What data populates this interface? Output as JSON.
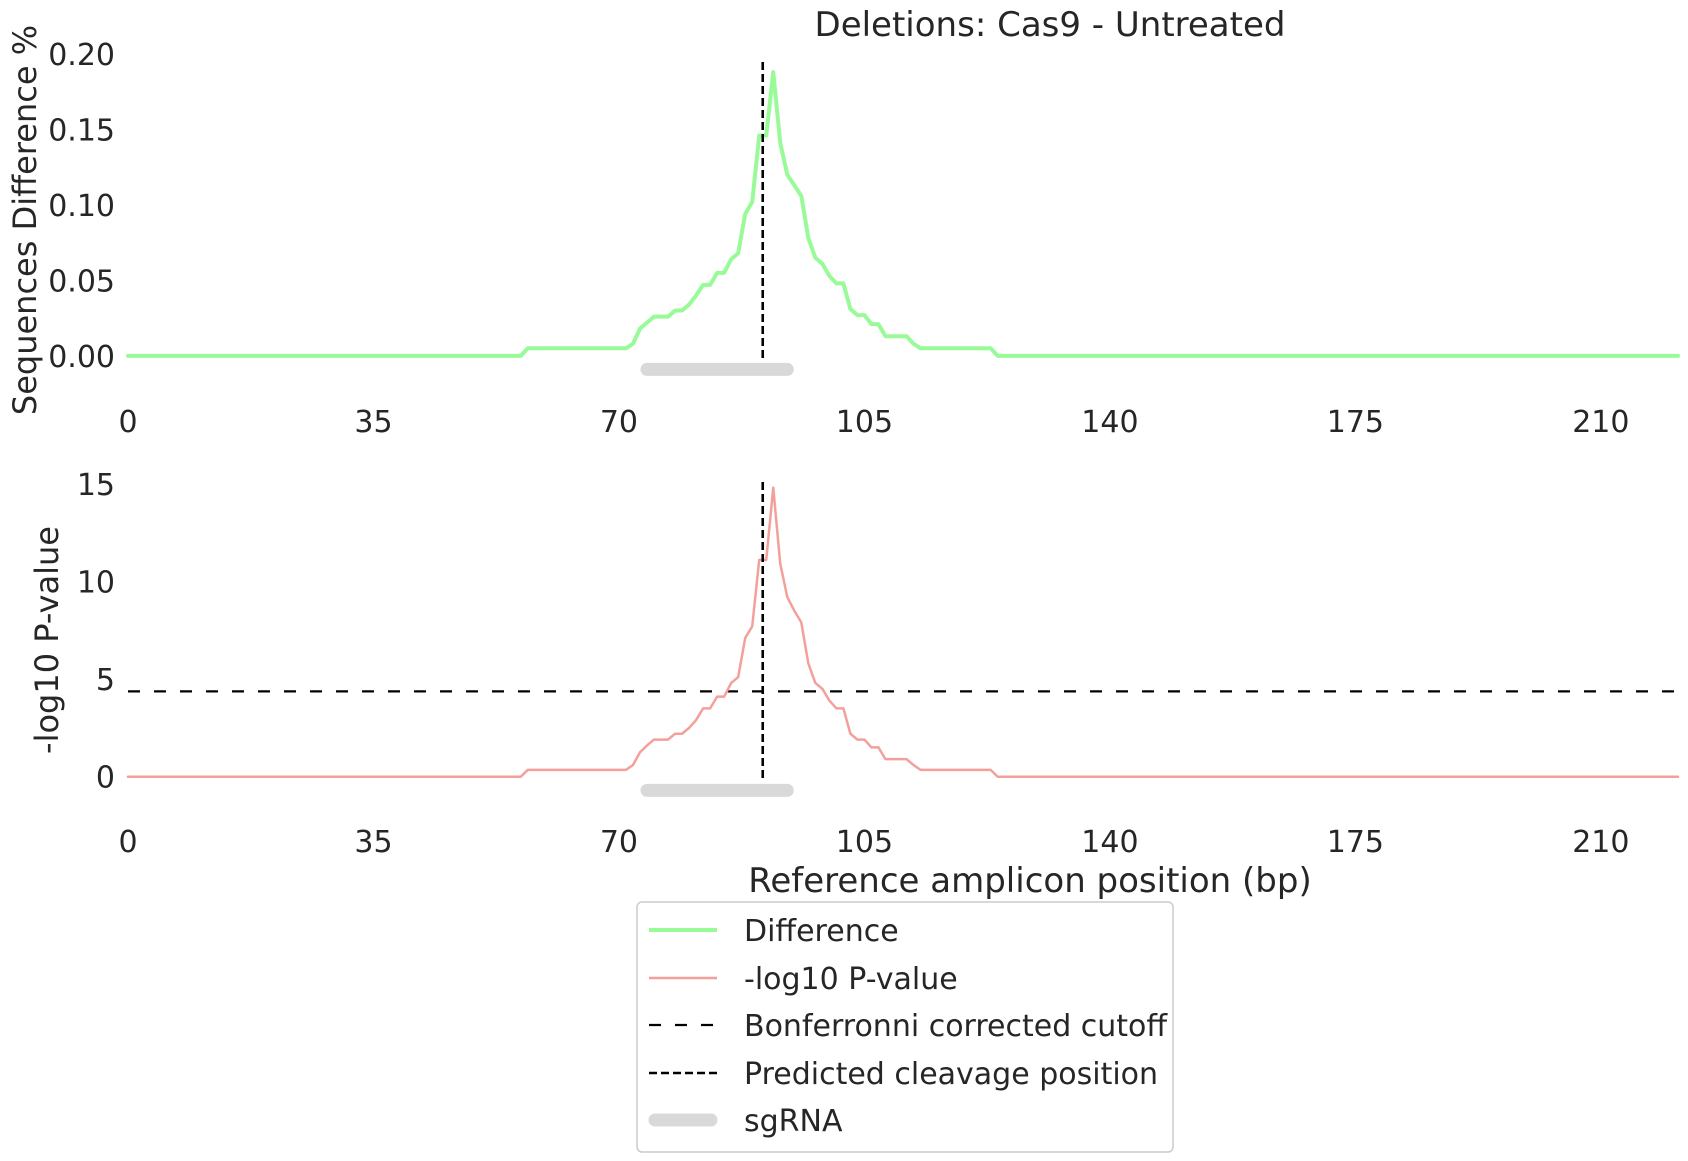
{
  "title": "Deletions: Cas9 - Untreated",
  "colors": {
    "difference": "#98fb98",
    "pvalue": "#f4a09a",
    "cutoff": "#000000",
    "cleavage": "#000000",
    "sgrna": "#d9d9d9",
    "text": "#262626"
  },
  "legend": {
    "placement": "bottom-center",
    "entries": [
      {
        "label": "Difference",
        "style": "green-solid"
      },
      {
        "label": "-log10 P-value",
        "style": "red-solid"
      },
      {
        "label": "Bonferronni corrected cutoff",
        "style": "black-loose-dash"
      },
      {
        "label": "Predicted cleavage position",
        "style": "black-dash"
      },
      {
        "label": "sgRNA",
        "style": "gray-thick"
      }
    ]
  },
  "chart_data": [
    {
      "type": "line",
      "title": "Deletions: Cas9 - Untreated",
      "xlabel": "",
      "ylabel": "Sequences Difference %",
      "xlim": [
        0,
        221
      ],
      "ylim": [
        -0.02,
        0.2
      ],
      "xticks": [
        "0",
        "35",
        "70",
        "105",
        "140",
        "175",
        "210"
      ],
      "xtick_values": [
        0,
        35,
        70,
        105,
        140,
        175,
        210
      ],
      "yticks": [
        "0.00",
        "0.05",
        "0.10",
        "0.15",
        "0.20"
      ],
      "ytick_values": [
        0,
        0.05,
        0.1,
        0.15,
        0.2
      ],
      "grid": false,
      "cleavage_position": 90.5,
      "sgrna": {
        "start": 74,
        "end": 94,
        "y": -0.009
      },
      "series": [
        {
          "key": "difference",
          "x": [
            0,
            56,
            57,
            71,
            72,
            73,
            74,
            75,
            77,
            78,
            79,
            80,
            81,
            82,
            83,
            84,
            85,
            86,
            87,
            88,
            89,
            90,
            91,
            92,
            93,
            94,
            95,
            96,
            97,
            98,
            99,
            100,
            101,
            102,
            103,
            104,
            105,
            106,
            107,
            108,
            109,
            110,
            111,
            112,
            113,
            114,
            115,
            116,
            123,
            124,
            221
          ],
          "y": [
            0,
            0,
            0.005,
            0.005,
            0.008,
            0.018,
            0.022,
            0.026,
            0.026,
            0.03,
            0.03,
            0.034,
            0.04,
            0.047,
            0.047,
            0.055,
            0.055,
            0.064,
            0.068,
            0.094,
            0.102,
            0.146,
            0.146,
            0.188,
            0.141,
            0.12,
            0.113,
            0.106,
            0.078,
            0.065,
            0.061,
            0.053,
            0.048,
            0.048,
            0.031,
            0.027,
            0.027,
            0.021,
            0.021,
            0.013,
            0.013,
            0.013,
            0.013,
            0.008,
            0.005,
            0.005,
            0.005,
            0.005,
            0.005,
            0,
            0
          ]
        }
      ]
    },
    {
      "type": "line",
      "xlabel": "Reference amplicon position (bp)",
      "ylabel": "-log10 P-value",
      "xlim": [
        0,
        221
      ],
      "ylim": [
        -1.5,
        15.5
      ],
      "xticks": [
        "0",
        "35",
        "70",
        "105",
        "140",
        "175",
        "210"
      ],
      "xtick_values": [
        0,
        35,
        70,
        105,
        140,
        175,
        210
      ],
      "yticks": [
        "0",
        "5",
        "10",
        "15"
      ],
      "ytick_values": [
        0,
        5,
        10,
        15
      ],
      "grid": false,
      "cleavage_position": 90.5,
      "bonferroni_cutoff": 4.37,
      "sgrna": {
        "start": 74,
        "end": 94,
        "y": -0.7
      },
      "series": [
        {
          "key": "pvalue",
          "x": [
            0,
            56,
            57,
            71,
            72,
            73,
            74,
            75,
            77,
            78,
            79,
            80,
            81,
            82,
            83,
            84,
            85,
            86,
            87,
            88,
            89,
            90,
            91,
            92,
            93,
            94,
            95,
            96,
            97,
            98,
            99,
            100,
            101,
            102,
            103,
            104,
            105,
            106,
            107,
            108,
            109,
            110,
            111,
            112,
            113,
            114,
            115,
            116,
            123,
            124,
            221
          ],
          "y": [
            0,
            0,
            0.35,
            0.35,
            0.6,
            1.25,
            1.6,
            1.9,
            1.9,
            2.2,
            2.2,
            2.5,
            2.9,
            3.5,
            3.5,
            4.1,
            4.1,
            4.8,
            5.1,
            7.1,
            7.7,
            11.1,
            11.1,
            14.8,
            10.9,
            9.2,
            8.5,
            7.9,
            5.8,
            4.8,
            4.5,
            3.9,
            3.5,
            3.5,
            2.2,
            1.9,
            1.9,
            1.5,
            1.5,
            0.9,
            0.9,
            0.9,
            0.9,
            0.6,
            0.35,
            0.35,
            0.35,
            0.35,
            0.35,
            0,
            0
          ]
        }
      ]
    }
  ]
}
